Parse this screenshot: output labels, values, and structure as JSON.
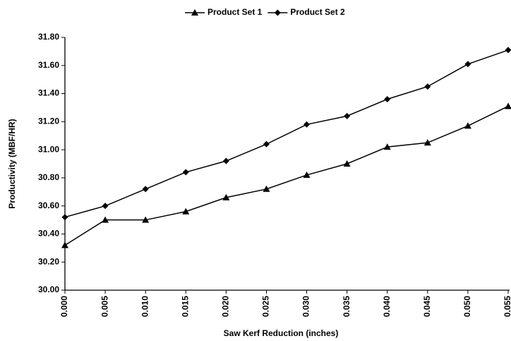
{
  "chart_data": {
    "type": "line",
    "x_label": "Saw Kerf Reduction (inches)",
    "y_label": "Productivity (MBF/HR)",
    "categories": [
      "0.000",
      "0.005",
      "0.010",
      "0.015",
      "0.020",
      "0.025",
      "0.030",
      "0.035",
      "0.040",
      "0.045",
      "0.050",
      "0.055"
    ],
    "series": [
      {
        "name": "Product Set 1",
        "color": "#000000",
        "marker": "triangle",
        "values": [
          30.32,
          30.5,
          30.5,
          30.56,
          30.66,
          30.72,
          30.82,
          30.9,
          31.02,
          31.05,
          31.17,
          31.31
        ]
      },
      {
        "name": "Product Set 2",
        "color": "#000000",
        "marker": "diamond",
        "values": [
          30.52,
          30.6,
          30.72,
          30.84,
          30.92,
          31.04,
          31.18,
          31.24,
          31.36,
          31.45,
          31.61,
          31.71
        ]
      }
    ],
    "ylim": [
      30,
      31.8
    ],
    "yticks": [
      {
        "value": 30,
        "label": "30.00"
      },
      {
        "value": 30.2,
        "label": "30.20"
      },
      {
        "value": 30.4,
        "label": "30.40"
      },
      {
        "value": 30.6,
        "label": "30.60"
      },
      {
        "value": 30.8,
        "label": "30.80"
      },
      {
        "value": 31,
        "label": "31.00"
      },
      {
        "value": 31.2,
        "label": "31.20"
      },
      {
        "value": 31.4,
        "label": "31.40"
      },
      {
        "value": 31.6,
        "label": "31.60"
      },
      {
        "value": 31.8,
        "label": "31.80"
      }
    ],
    "grid": false,
    "legend": "top"
  }
}
